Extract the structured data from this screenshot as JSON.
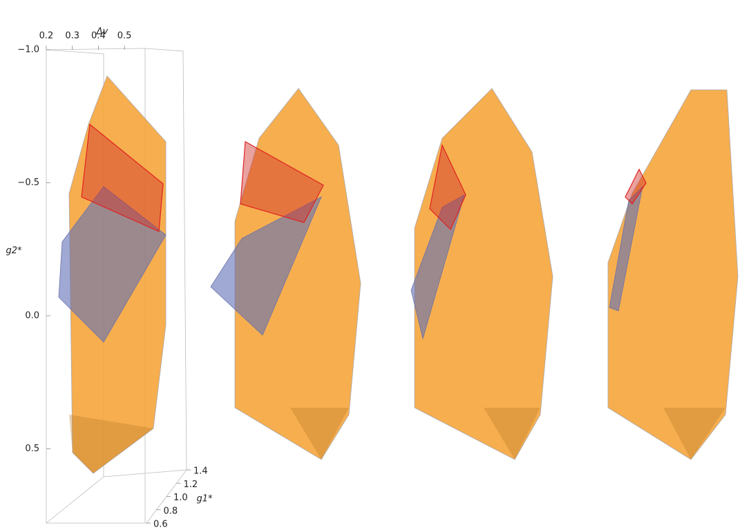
{
  "chart_data": {
    "type": "plot3d",
    "x_label": "Δv",
    "y_label": "g2*",
    "z_label": "g1*",
    "xticks": [
      0.2,
      0.3,
      0.4,
      0.5
    ],
    "yticks": [
      {
        "value": -1.0,
        "label": "−1.0"
      },
      {
        "value": -0.5,
        "label": "−0.5"
      },
      {
        "value": 0.0,
        "label": "0.0"
      },
      {
        "value": 0.5,
        "label": "0.5"
      }
    ],
    "zticks": [
      0.6,
      0.8,
      {
        "value": 1.0,
        "label": "1.0"
      },
      1.2,
      1.4
    ]
  }
}
